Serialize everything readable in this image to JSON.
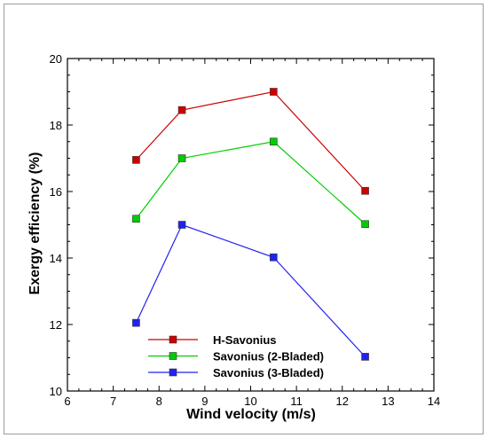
{
  "chart_data": {
    "type": "line",
    "title": "",
    "xlabel": "Wind velocity (m/s)",
    "ylabel": "Exergy efficiency (%)",
    "xlim": [
      6,
      14
    ],
    "ylim": [
      10,
      20
    ],
    "xticks": [
      6,
      7,
      8,
      9,
      10,
      11,
      12,
      13,
      14
    ],
    "yticks": [
      10,
      12,
      14,
      16,
      18,
      20
    ],
    "x": [
      7.5,
      8.5,
      10.5,
      12.5
    ],
    "grid": false,
    "legend_position": "bottom-left",
    "series": [
      {
        "name": "H-Savonius",
        "values": [
          16.95,
          18.45,
          19.0,
          16.02
        ],
        "color": "#cc0000"
      },
      {
        "name": "Savonius (2-Bladed)",
        "values": [
          15.18,
          17.0,
          17.5,
          15.02
        ],
        "color": "#00cc00"
      },
      {
        "name": "Savonius (3-Bladed)",
        "values": [
          12.05,
          15.0,
          14.02,
          11.03
        ],
        "color": "#2222ee"
      }
    ]
  }
}
